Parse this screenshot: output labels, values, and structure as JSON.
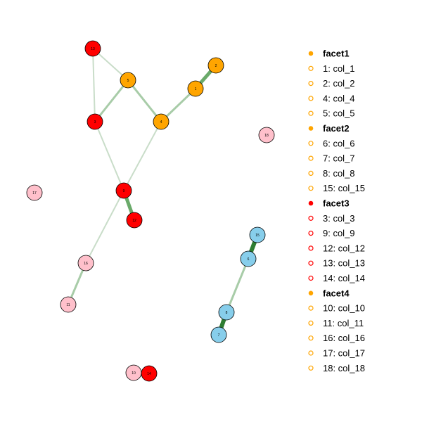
{
  "colors": {
    "facet1": "#FFA500",
    "facet2": "#87CEEB",
    "facet3": "#FF0000",
    "facet4": "#FFC0CB",
    "legend_facet1": "#FFA500",
    "legend_facet2": "#FFA500",
    "legend_facet3": "#FF0000",
    "legend_facet4": "#FFA500",
    "edge_light": "#c9ddc9",
    "edge_mid": "#a8cca8",
    "edge_strong": "#6aaa6a",
    "edge_dark": "#2e7d32"
  },
  "nodes": [
    {
      "id": "1",
      "label": "1",
      "group": "facet1"
    },
    {
      "id": "2",
      "label": "2",
      "group": "facet1"
    },
    {
      "id": "3",
      "label": "3",
      "group": "facet3"
    },
    {
      "id": "4",
      "label": "4",
      "group": "facet1"
    },
    {
      "id": "5",
      "label": "5",
      "group": "facet1"
    },
    {
      "id": "6",
      "label": "6",
      "group": "facet2"
    },
    {
      "id": "7",
      "label": "7",
      "group": "facet2"
    },
    {
      "id": "8",
      "label": "8",
      "group": "facet2"
    },
    {
      "id": "9",
      "label": "9",
      "group": "facet3"
    },
    {
      "id": "10",
      "label": "10",
      "group": "facet4"
    },
    {
      "id": "11",
      "label": "11",
      "group": "facet4"
    },
    {
      "id": "12",
      "label": "12",
      "group": "facet3"
    },
    {
      "id": "13",
      "label": "13",
      "group": "facet3"
    },
    {
      "id": "14",
      "label": "14",
      "group": "facet3"
    },
    {
      "id": "15",
      "label": "15",
      "group": "facet2"
    },
    {
      "id": "16",
      "label": "16",
      "group": "facet4"
    },
    {
      "id": "17",
      "label": "17",
      "group": "facet4"
    },
    {
      "id": "18",
      "label": "18",
      "group": "facet4"
    }
  ],
  "edges": [
    {
      "from": "13",
      "to": "5",
      "strength": "light"
    },
    {
      "from": "13",
      "to": "3",
      "strength": "light"
    },
    {
      "from": "5",
      "to": "3",
      "strength": "mid"
    },
    {
      "from": "5",
      "to": "4",
      "strength": "mid"
    },
    {
      "from": "4",
      "to": "1",
      "strength": "mid"
    },
    {
      "from": "1",
      "to": "2",
      "strength": "strong"
    },
    {
      "from": "3",
      "to": "9",
      "strength": "light"
    },
    {
      "from": "4",
      "to": "9",
      "strength": "light"
    },
    {
      "from": "9",
      "to": "12",
      "strength": "strong"
    },
    {
      "from": "9",
      "to": "16",
      "strength": "light"
    },
    {
      "from": "16",
      "to": "11",
      "strength": "mid"
    },
    {
      "from": "15",
      "to": "6",
      "strength": "dark"
    },
    {
      "from": "6",
      "to": "8",
      "strength": "mid"
    },
    {
      "from": "8",
      "to": "7",
      "strength": "dark"
    },
    {
      "from": "10",
      "to": "14",
      "strength": "light"
    }
  ],
  "legend": [
    {
      "type": "header",
      "text": "facet1",
      "group": "facet1"
    },
    {
      "type": "item",
      "text": "1: col_1",
      "group": "facet1"
    },
    {
      "type": "item",
      "text": "2: col_2",
      "group": "facet1"
    },
    {
      "type": "item",
      "text": "4: col_4",
      "group": "facet1"
    },
    {
      "type": "item",
      "text": "5: col_5",
      "group": "facet1"
    },
    {
      "type": "header",
      "text": "facet2",
      "group": "facet2"
    },
    {
      "type": "item",
      "text": "6: col_6",
      "group": "facet2"
    },
    {
      "type": "item",
      "text": "7: col_7",
      "group": "facet2"
    },
    {
      "type": "item",
      "text": "8: col_8",
      "group": "facet2"
    },
    {
      "type": "item",
      "text": "15: col_15",
      "group": "facet2"
    },
    {
      "type": "header",
      "text": "facet3",
      "group": "facet3"
    },
    {
      "type": "item",
      "text": "3: col_3",
      "group": "facet3"
    },
    {
      "type": "item",
      "text": "9: col_9",
      "group": "facet3"
    },
    {
      "type": "item",
      "text": "12: col_12",
      "group": "facet3"
    },
    {
      "type": "item",
      "text": "13: col_13",
      "group": "facet3"
    },
    {
      "type": "item",
      "text": "14: col_14",
      "group": "facet3"
    },
    {
      "type": "header",
      "text": "facet4",
      "group": "facet4"
    },
    {
      "type": "item",
      "text": "10: col_10",
      "group": "facet4"
    },
    {
      "type": "item",
      "text": "11: col_11",
      "group": "facet4"
    },
    {
      "type": "item",
      "text": "16: col_16",
      "group": "facet4"
    },
    {
      "type": "item",
      "text": "17: col_17",
      "group": "facet4"
    },
    {
      "type": "item",
      "text": "18: col_18",
      "group": "facet4"
    }
  ]
}
